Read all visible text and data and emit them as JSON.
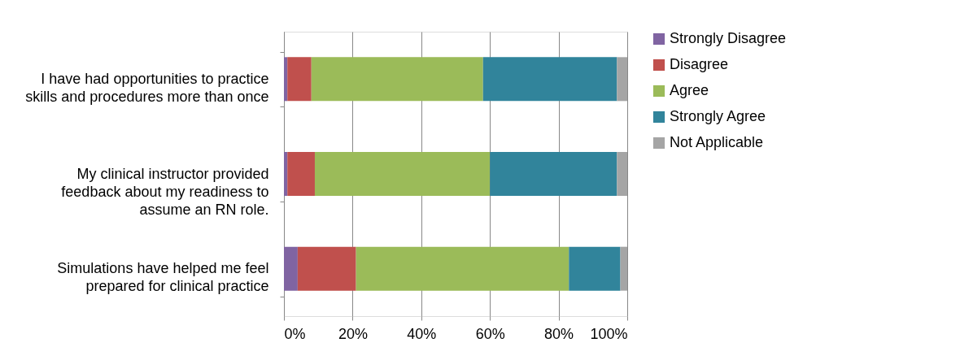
{
  "chart_data": {
    "type": "bar",
    "orientation": "horizontal",
    "stacked": true,
    "categories": [
      "I have had opportunities to practice skills and procedures more than once",
      "My clinical instructor provided feedback about my readiness to assume an RN role.",
      "Simulations have helped me feel prepared for clinical practice"
    ],
    "series": [
      {
        "name": "Strongly Disagree",
        "color": "#8064a2",
        "values": [
          1,
          1,
          4
        ]
      },
      {
        "name": "Disagree",
        "color": "#c0504d",
        "values": [
          7,
          8,
          17
        ]
      },
      {
        "name": "Agree",
        "color": "#9bbb59",
        "values": [
          50,
          51,
          62
        ]
      },
      {
        "name": "Strongly Agree",
        "color": "#31849b",
        "values": [
          39,
          37,
          15
        ]
      },
      {
        "name": "Not Applicable",
        "color": "#a5a5a5",
        "values": [
          3,
          3,
          2
        ]
      }
    ],
    "xlim": [
      0,
      100
    ],
    "xticks": [
      {
        "value": 0,
        "label": "0%"
      },
      {
        "value": 20,
        "label": "20%"
      },
      {
        "value": 40,
        "label": "40%"
      },
      {
        "value": 60,
        "label": "60%"
      },
      {
        "value": 80,
        "label": "80%"
      },
      {
        "value": 100,
        "label": "100%"
      }
    ],
    "grid": "x",
    "legend": "right"
  }
}
